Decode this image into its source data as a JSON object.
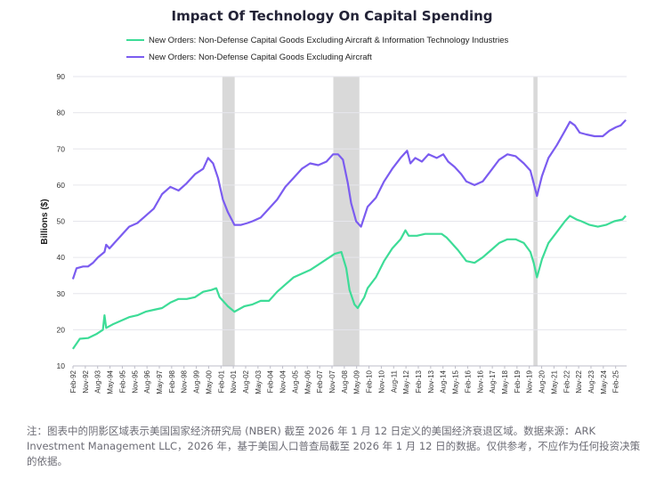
{
  "chart_data": {
    "type": "line",
    "title": "Impact Of Technology On Capital Spending",
    "ylabel": "Billions ($)",
    "xlabel": "",
    "ylim": [
      10,
      90
    ],
    "yticks": [
      10,
      20,
      30,
      40,
      50,
      60,
      70,
      80,
      90
    ],
    "xlim": [
      1992.083,
      2025.75
    ],
    "xtick_labels": [
      "Feb-92",
      "Nov-92",
      "Aug-93",
      "May-94",
      "Feb-95",
      "Nov-95",
      "Aug-96",
      "May-97",
      "Feb-98",
      "Nov-98",
      "Aug-99",
      "May-00",
      "Feb-01",
      "Nov-01",
      "Aug-02",
      "May-03",
      "Feb-04",
      "Nov-04",
      "Aug-05",
      "May-06",
      "Feb-07",
      "Nov-07",
      "Aug-08",
      "May-09",
      "Feb-10",
      "Nov-10",
      "Aug-11",
      "May-12",
      "Feb-13",
      "Nov-13",
      "Aug-14",
      "May-15",
      "Feb-16",
      "Nov-16",
      "Aug-17",
      "May-18",
      "Feb-19",
      "Nov-19",
      "Aug-20",
      "May-21",
      "Feb-22",
      "Nov-22",
      "Aug-23",
      "May-24",
      "Feb-25"
    ],
    "grid": true,
    "legend_position": "top",
    "recessions": [
      {
        "start": "Mar-01",
        "end": "Nov-01"
      },
      {
        "start": "Dec-07",
        "end": "Jun-09"
      },
      {
        "start": "Feb-20",
        "end": "Apr-20"
      }
    ],
    "series": [
      {
        "name": "New Orders: Non-Defense Capital Goods Excluding Aircraft & Information Technology Industries",
        "color": "#3ddc97",
        "points": [
          [
            1992.08,
            14.7
          ],
          [
            1992.5,
            17.5
          ],
          [
            1993.0,
            17.7
          ],
          [
            1993.5,
            18.8
          ],
          [
            1993.9,
            20.0
          ],
          [
            1994.0,
            24.0
          ],
          [
            1994.1,
            20.5
          ],
          [
            1994.5,
            21.5
          ],
          [
            1995.0,
            22.5
          ],
          [
            1995.5,
            23.5
          ],
          [
            1996.0,
            24.0
          ],
          [
            1996.5,
            25.0
          ],
          [
            1997.0,
            25.5
          ],
          [
            1997.5,
            26.0
          ],
          [
            1998.0,
            27.5
          ],
          [
            1998.5,
            28.5
          ],
          [
            1999.0,
            28.5
          ],
          [
            1999.5,
            29.0
          ],
          [
            2000.0,
            30.5
          ],
          [
            2000.5,
            31.0
          ],
          [
            2000.8,
            31.5
          ],
          [
            2001.0,
            29.0
          ],
          [
            2001.5,
            26.5
          ],
          [
            2001.9,
            25.0
          ],
          [
            2002.5,
            26.5
          ],
          [
            2003.0,
            27.0
          ],
          [
            2003.5,
            28.0
          ],
          [
            2004.0,
            28.0
          ],
          [
            2004.5,
            30.5
          ],
          [
            2005.0,
            32.5
          ],
          [
            2005.5,
            34.5
          ],
          [
            2006.0,
            35.5
          ],
          [
            2006.5,
            36.5
          ],
          [
            2007.0,
            38.0
          ],
          [
            2007.5,
            39.5
          ],
          [
            2008.0,
            41.0
          ],
          [
            2008.4,
            41.5
          ],
          [
            2008.7,
            37.0
          ],
          [
            2008.9,
            31.0
          ],
          [
            2009.2,
            27.0
          ],
          [
            2009.4,
            26.0
          ],
          [
            2009.8,
            29.0
          ],
          [
            2010.0,
            31.5
          ],
          [
            2010.5,
            34.5
          ],
          [
            2011.0,
            39.0
          ],
          [
            2011.5,
            42.5
          ],
          [
            2012.0,
            45.0
          ],
          [
            2012.3,
            47.5
          ],
          [
            2012.5,
            46.0
          ],
          [
            2013.0,
            46.0
          ],
          [
            2013.5,
            46.5
          ],
          [
            2014.0,
            46.5
          ],
          [
            2014.5,
            46.5
          ],
          [
            2014.8,
            45.5
          ],
          [
            2015.0,
            44.5
          ],
          [
            2015.5,
            42.0
          ],
          [
            2016.0,
            39.0
          ],
          [
            2016.5,
            38.5
          ],
          [
            2017.0,
            40.0
          ],
          [
            2017.5,
            42.0
          ],
          [
            2018.0,
            44.0
          ],
          [
            2018.5,
            45.0
          ],
          [
            2019.0,
            45.0
          ],
          [
            2019.5,
            44.0
          ],
          [
            2019.9,
            41.5
          ],
          [
            2020.1,
            38.5
          ],
          [
            2020.3,
            34.5
          ],
          [
            2020.6,
            39.5
          ],
          [
            2021.0,
            44.0
          ],
          [
            2021.5,
            47.0
          ],
          [
            2022.0,
            50.0
          ],
          [
            2022.3,
            51.5
          ],
          [
            2022.7,
            50.5
          ],
          [
            2023.0,
            50.0
          ],
          [
            2023.5,
            49.0
          ],
          [
            2024.0,
            48.5
          ],
          [
            2024.5,
            49.0
          ],
          [
            2025.0,
            50.0
          ],
          [
            2025.5,
            50.5
          ],
          [
            2025.7,
            51.5
          ]
        ]
      },
      {
        "name": "New Orders: Non-Defense Capital Goods Excluding Aircraft",
        "color": "#7b5cf0",
        "points": [
          [
            1992.08,
            34.0
          ],
          [
            1992.3,
            37.0
          ],
          [
            1992.7,
            37.5
          ],
          [
            1993.0,
            37.5
          ],
          [
            1993.3,
            38.5
          ],
          [
            1993.6,
            40.0
          ],
          [
            1994.0,
            41.5
          ],
          [
            1994.1,
            43.5
          ],
          [
            1994.3,
            42.5
          ],
          [
            1994.6,
            44.0
          ],
          [
            1995.0,
            46.0
          ],
          [
            1995.5,
            48.5
          ],
          [
            1996.0,
            49.5
          ],
          [
            1996.5,
            51.5
          ],
          [
            1997.0,
            53.5
          ],
          [
            1997.5,
            57.5
          ],
          [
            1998.0,
            59.5
          ],
          [
            1998.5,
            58.5
          ],
          [
            1999.0,
            60.5
          ],
          [
            1999.5,
            63.0
          ],
          [
            2000.0,
            64.5
          ],
          [
            2000.3,
            67.5
          ],
          [
            2000.6,
            66.0
          ],
          [
            2000.9,
            62.0
          ],
          [
            2001.2,
            56.0
          ],
          [
            2001.5,
            52.5
          ],
          [
            2001.9,
            49.0
          ],
          [
            2002.3,
            49.0
          ],
          [
            2002.7,
            49.5
          ],
          [
            2003.0,
            50.0
          ],
          [
            2003.5,
            51.0
          ],
          [
            2004.0,
            53.5
          ],
          [
            2004.5,
            56.0
          ],
          [
            2005.0,
            59.5
          ],
          [
            2005.5,
            62.0
          ],
          [
            2006.0,
            64.5
          ],
          [
            2006.5,
            66.0
          ],
          [
            2007.0,
            65.5
          ],
          [
            2007.5,
            66.5
          ],
          [
            2007.9,
            68.5
          ],
          [
            2008.2,
            68.5
          ],
          [
            2008.5,
            67.0
          ],
          [
            2008.8,
            60.5
          ],
          [
            2009.0,
            55.0
          ],
          [
            2009.3,
            50.0
          ],
          [
            2009.6,
            48.5
          ],
          [
            2010.0,
            54.0
          ],
          [
            2010.5,
            56.5
          ],
          [
            2011.0,
            61.0
          ],
          [
            2011.5,
            64.5
          ],
          [
            2012.0,
            67.5
          ],
          [
            2012.4,
            69.5
          ],
          [
            2012.6,
            66.0
          ],
          [
            2012.9,
            67.5
          ],
          [
            2013.3,
            66.5
          ],
          [
            2013.7,
            68.5
          ],
          [
            2014.2,
            67.5
          ],
          [
            2014.6,
            68.5
          ],
          [
            2014.9,
            66.5
          ],
          [
            2015.3,
            65.0
          ],
          [
            2015.7,
            63.0
          ],
          [
            2016.0,
            61.0
          ],
          [
            2016.5,
            60.0
          ],
          [
            2017.0,
            61.0
          ],
          [
            2017.5,
            64.0
          ],
          [
            2018.0,
            67.0
          ],
          [
            2018.5,
            68.5
          ],
          [
            2019.0,
            68.0
          ],
          [
            2019.5,
            66.0
          ],
          [
            2019.9,
            64.0
          ],
          [
            2020.1,
            60.5
          ],
          [
            2020.3,
            57.0
          ],
          [
            2020.6,
            62.5
          ],
          [
            2021.0,
            67.5
          ],
          [
            2021.5,
            71.0
          ],
          [
            2022.0,
            75.0
          ],
          [
            2022.3,
            77.5
          ],
          [
            2022.6,
            76.5
          ],
          [
            2022.9,
            74.5
          ],
          [
            2023.3,
            74.0
          ],
          [
            2023.8,
            73.5
          ],
          [
            2024.3,
            73.5
          ],
          [
            2024.7,
            75.0
          ],
          [
            2025.1,
            76.0
          ],
          [
            2025.4,
            76.5
          ],
          [
            2025.7,
            78.0
          ]
        ]
      }
    ]
  },
  "footnote": "注：图表中的阴影区域表示美国国家经济研究局 (NBER) 截至 2026 年 1 月 12 日定义的美国经济衰退区域。数据来源：ARK Investment Management LLC，2026 年，基于美国人口普查局截至 2026 年 1 月 12 日的数据。仅供参考，不应作为任何投资决策的依据。",
  "colors": {
    "recession_shade": "#d9d9d9",
    "grid": "#e6e6ec",
    "axis_text": "#333333"
  }
}
